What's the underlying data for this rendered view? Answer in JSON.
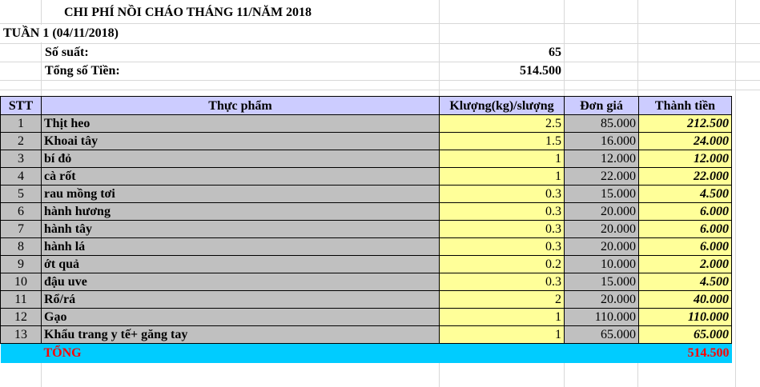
{
  "title": "CHI PHÍ NỒI CHÁO THÁNG 11/NĂM 2018",
  "week": "TUẦN 1 (04/11/2018)",
  "summary": {
    "servings_label": "Số suất:",
    "servings_value": "65",
    "total_label": "Tổng số Tiền:",
    "total_value": "514.500"
  },
  "table": {
    "headers": [
      "STT",
      "Thực phẩm",
      "Klượng(kg)/slượng",
      "Đơn giá",
      "Thành tiền"
    ],
    "rows": [
      {
        "stt": "1",
        "name": "Thịt heo",
        "qty": "2.5",
        "price": "85.000",
        "total": "212.500"
      },
      {
        "stt": "2",
        "name": "Khoai tây",
        "qty": "1.5",
        "price": "16.000",
        "total": "24.000"
      },
      {
        "stt": "3",
        "name": "bí đỏ",
        "qty": "1",
        "price": "12.000",
        "total": "12.000"
      },
      {
        "stt": "4",
        "name": "cà rốt",
        "qty": "1",
        "price": "22.000",
        "total": "22.000"
      },
      {
        "stt": "5",
        "name": "rau mồng tơi",
        "qty": "0.3",
        "price": "15.000",
        "total": "4.500"
      },
      {
        "stt": "6",
        "name": "hành hương",
        "qty": "0.3",
        "price": "20.000",
        "total": "6.000"
      },
      {
        "stt": "7",
        "name": "hành tây",
        "qty": "0.3",
        "price": "20.000",
        "total": "6.000"
      },
      {
        "stt": "8",
        "name": "hành lá",
        "qty": "0.3",
        "price": "20.000",
        "total": "6.000"
      },
      {
        "stt": "9",
        "name": "ớt quả",
        "qty": "0.2",
        "price": "10.000",
        "total": "2.000"
      },
      {
        "stt": "10",
        "name": "đậu uve",
        "qty": "0.3",
        "price": "15.000",
        "total": "4.500"
      },
      {
        "stt": "11",
        "name": "Rổ/rá",
        "qty": "2",
        "price": "20.000",
        "total": "40.000"
      },
      {
        "stt": "12",
        "name": "Gạo",
        "qty": "1",
        "price": "110.000",
        "total": "110.000"
      },
      {
        "stt": "13",
        "name": "Khẩu trang y tế+ găng tay",
        "qty": "1",
        "price": "65.000",
        "total": "65.000"
      }
    ],
    "sum_label": "TỔNG",
    "sum_value": "514.500"
  }
}
